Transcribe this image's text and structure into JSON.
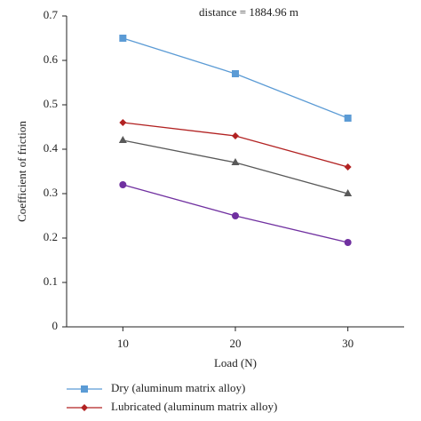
{
  "chart_data": {
    "type": "line",
    "subtitle": "distance = 1884.96 m",
    "x_label": "Load (N)",
    "y_label": "Coefficient of friction",
    "x": [
      10,
      20,
      30
    ],
    "xlim": [
      5,
      35
    ],
    "xticks": [
      10,
      20,
      30
    ],
    "ylim": [
      0,
      0.7
    ],
    "yticks": [
      0,
      0.1,
      0.2,
      0.3,
      0.4,
      0.5,
      0.6,
      0.7
    ],
    "series": [
      {
        "name": "Dry (aluminum matrix alloy)",
        "color": "#5b9bd5",
        "marker": "square",
        "values": [
          0.65,
          0.57,
          0.47
        ]
      },
      {
        "name": "Lubricated (aluminum matrix alloy)",
        "color": "#b22222",
        "marker": "diamond",
        "values": [
          0.46,
          0.43,
          0.36
        ]
      },
      {
        "color": "#595959",
        "marker": "triangle",
        "values": [
          0.42,
          0.37,
          0.3
        ]
      },
      {
        "color": "#7030a0",
        "marker": "circle",
        "values": [
          0.32,
          0.25,
          0.19
        ]
      }
    ]
  }
}
